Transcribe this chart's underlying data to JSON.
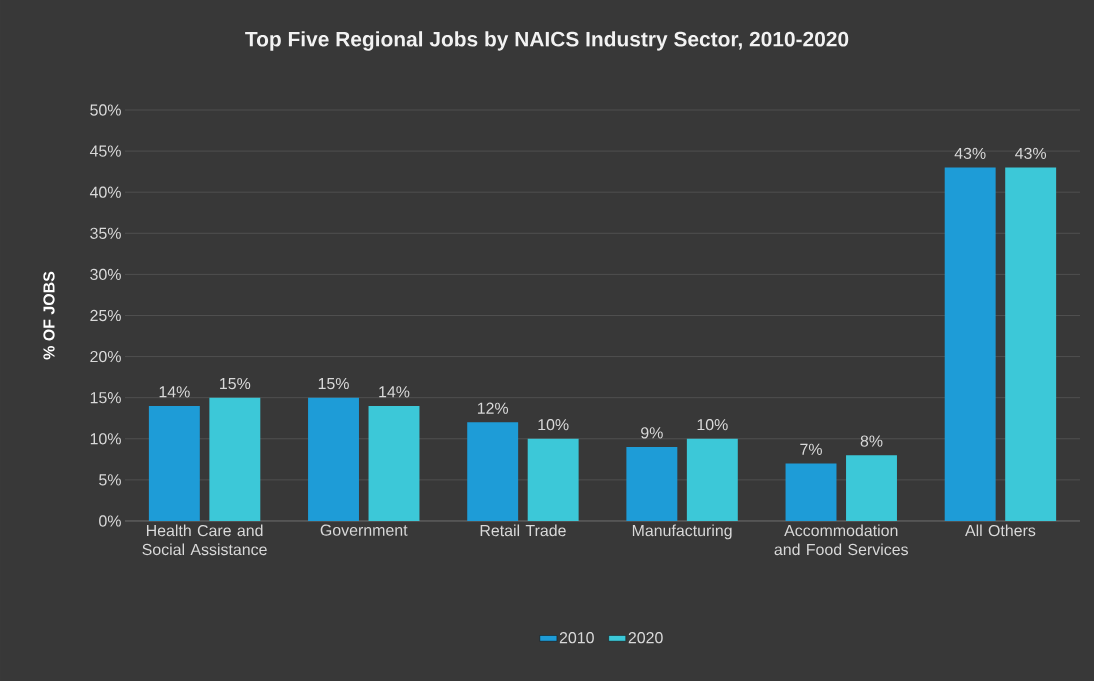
{
  "chart_data": {
    "type": "bar",
    "title": "Top Five Regional Jobs by NAICS Industry Sector, 2010-2020",
    "ylabel": "% OF JOBS",
    "categories": [
      "Health Care and Social Assistance",
      "Government",
      "Retail Trade",
      "Manufacturing",
      "Accommodation and Food Services",
      "All Others"
    ],
    "series": [
      {
        "name": "2010",
        "color": "#1e9cd7",
        "values": [
          14,
          15,
          12,
          9,
          7,
          43
        ],
        "value_labels": [
          "14%",
          "15%",
          "12%",
          "9%",
          "7%",
          "43%"
        ]
      },
      {
        "name": "2020",
        "color": "#3cc8d8",
        "values": [
          15,
          14,
          10,
          10,
          8,
          43
        ],
        "value_labels": [
          "15%",
          "14%",
          "10%",
          "10%",
          "8%",
          "43%"
        ]
      }
    ],
    "ylim": [
      0,
      50
    ],
    "yticks": [
      {
        "value": 0,
        "label": "0%"
      },
      {
        "value": 5,
        "label": "5%"
      },
      {
        "value": 10,
        "label": "10%"
      },
      {
        "value": 15,
        "label": "15%"
      },
      {
        "value": 20,
        "label": "20%"
      },
      {
        "value": 25,
        "label": "25%"
      },
      {
        "value": 30,
        "label": "30%"
      },
      {
        "value": 35,
        "label": "35%"
      },
      {
        "value": 40,
        "label": "40%"
      },
      {
        "value": 45,
        "label": "45%"
      },
      {
        "value": 50,
        "label": "50%"
      }
    ],
    "grid": "y",
    "legend": "bottom"
  }
}
